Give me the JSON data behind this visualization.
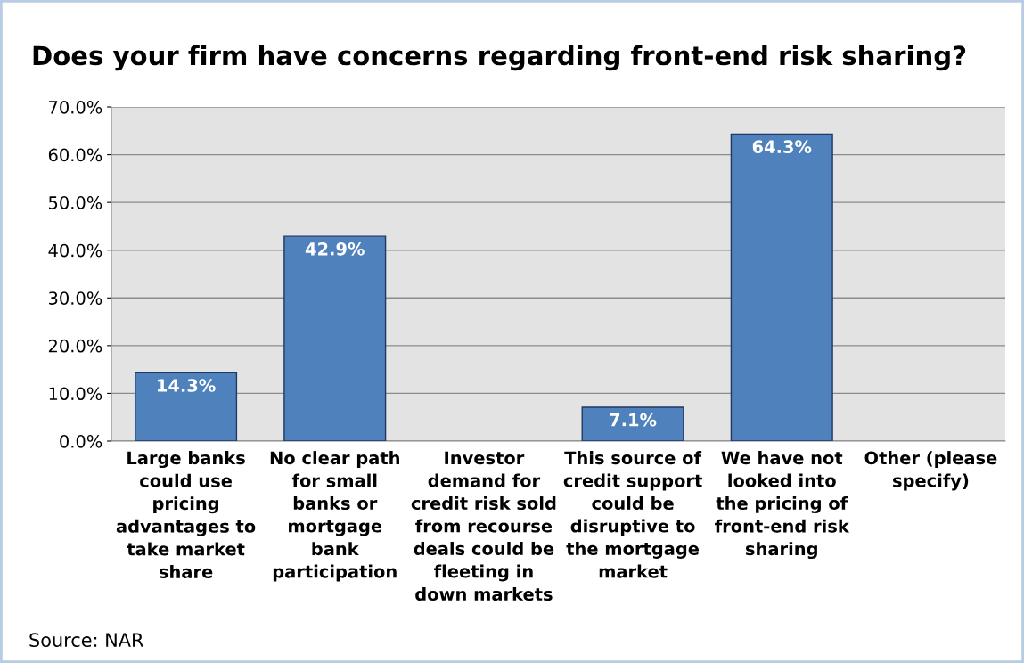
{
  "chart_data": {
    "type": "bar",
    "title": "Does your firm have concerns regarding front-end risk sharing?",
    "categories": [
      "Large banks\ncould use\npricing\nadvantages to\ntake market\nshare",
      "No clear path\nfor small\nbanks or\nmortgage\nbank\nparticipation",
      "Investor\ndemand for\ncredit risk sold\nfrom recourse\ndeals could be\nfleeting in\ndown markets",
      "This source of\ncredit support\ncould be\ndisruptive to\nthe mortgage\nmarket",
      "We have not\nlooked into\nthe pricing of\nfront-end risk\nsharing",
      "Other (please\nspecify)"
    ],
    "values": [
      14.3,
      42.9,
      0,
      7.1,
      64.3,
      0
    ],
    "value_labels": [
      "14.3%",
      "42.9%",
      null,
      "7.1%",
      "64.3%",
      null
    ],
    "color": "#4f81bd",
    "ylim": [
      0,
      70
    ],
    "yticks": [
      {
        "value": 0,
        "label": "0.0%"
      },
      {
        "value": 10,
        "label": "10.0%"
      },
      {
        "value": 20,
        "label": "20.0%"
      },
      {
        "value": 30,
        "label": "30.0%"
      },
      {
        "value": 40,
        "label": "40.0%"
      },
      {
        "value": 50,
        "label": "50.0%"
      },
      {
        "value": 60,
        "label": "60.0%"
      },
      {
        "value": 70,
        "label": "70.0%"
      }
    ],
    "grid": "y",
    "annotations": [
      "Source: NAR"
    ]
  }
}
